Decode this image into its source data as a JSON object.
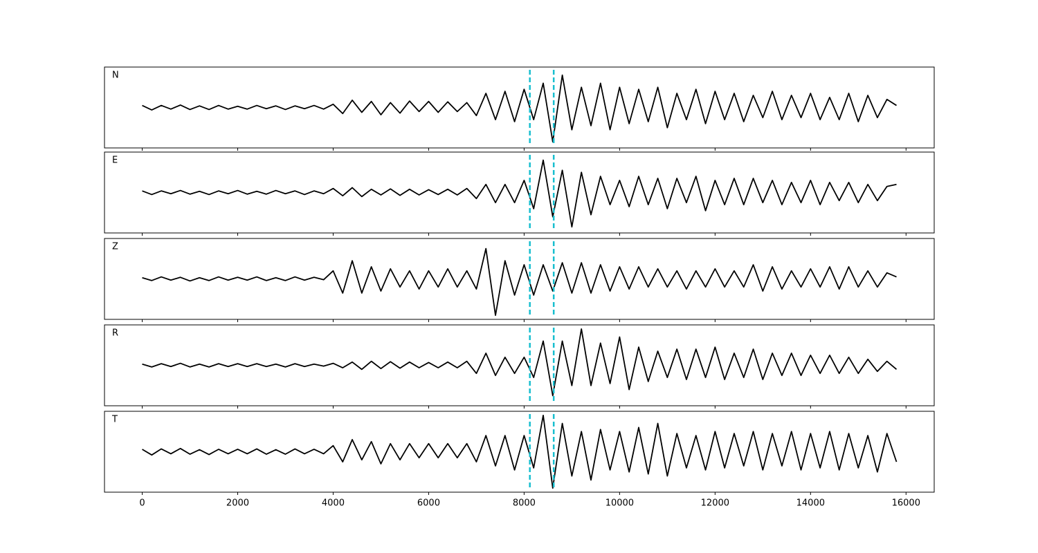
{
  "chart_data": {
    "type": "line",
    "x": [
      0,
      200,
      400,
      600,
      800,
      1000,
      1200,
      1400,
      1600,
      1800,
      2000,
      2200,
      2400,
      2600,
      2800,
      3000,
      3200,
      3400,
      3600,
      3800,
      4000,
      4200,
      4400,
      4600,
      4800,
      5000,
      5200,
      5400,
      5600,
      5800,
      6000,
      6200,
      6400,
      6600,
      6800,
      7000,
      7200,
      7400,
      7600,
      7800,
      8000,
      8200,
      8400,
      8600,
      8800,
      9000,
      9200,
      9400,
      9600,
      9800,
      10000,
      10200,
      10400,
      10600,
      10800,
      11000,
      11200,
      11400,
      11600,
      11800,
      12000,
      12200,
      12400,
      12600,
      12800,
      13000,
      13200,
      13400,
      13600,
      13800,
      14000,
      14200,
      14400,
      14600,
      14800,
      15000,
      15200,
      15400,
      15600,
      15800
    ],
    "xlim": [
      -790,
      16590
    ],
    "xticks": [
      0,
      2000,
      4000,
      6000,
      8000,
      10000,
      12000,
      14000,
      16000
    ],
    "ylim": [
      -1,
      1
    ],
    "markers": [
      8120,
      8620
    ],
    "marker_color": "#17becf",
    "series": [
      {
        "name": "N",
        "color": "#000000",
        "values": [
          0.05,
          -0.06,
          0.05,
          -0.04,
          0.06,
          -0.05,
          0.04,
          -0.05,
          0.05,
          -0.04,
          0.03,
          -0.04,
          0.05,
          -0.03,
          0.04,
          -0.05,
          0.04,
          -0.03,
          0.05,
          -0.04,
          0.08,
          -0.15,
          0.18,
          -0.12,
          0.15,
          -0.18,
          0.12,
          -0.14,
          0.16,
          -0.1,
          0.15,
          -0.12,
          0.14,
          -0.1,
          0.12,
          -0.2,
          0.35,
          -0.3,
          0.4,
          -0.35,
          0.45,
          -0.3,
          0.6,
          -0.85,
          0.8,
          -0.55,
          0.5,
          -0.45,
          0.6,
          -0.55,
          0.5,
          -0.4,
          0.45,
          -0.35,
          0.5,
          -0.5,
          0.35,
          -0.3,
          0.45,
          -0.4,
          0.4,
          -0.3,
          0.35,
          -0.35,
          0.3,
          -0.25,
          0.4,
          -0.3,
          0.3,
          -0.25,
          0.35,
          -0.3,
          0.25,
          -0.3,
          0.35,
          -0.35,
          0.3,
          -0.25,
          0.2,
          0.05
        ]
      },
      {
        "name": "E",
        "color": "#000000",
        "values": [
          0.04,
          -0.05,
          0.04,
          -0.03,
          0.05,
          -0.04,
          0.03,
          -0.05,
          0.04,
          -0.03,
          0.05,
          -0.04,
          0.03,
          -0.04,
          0.05,
          -0.03,
          0.04,
          -0.05,
          0.04,
          -0.03,
          0.1,
          -0.08,
          0.12,
          -0.1,
          0.08,
          -0.06,
          0.09,
          -0.07,
          0.08,
          -0.06,
          0.07,
          -0.05,
          0.08,
          -0.06,
          0.1,
          -0.15,
          0.2,
          -0.25,
          0.2,
          -0.25,
          0.3,
          -0.4,
          0.8,
          -0.6,
          0.55,
          -0.85,
          0.5,
          -0.55,
          0.4,
          -0.3,
          0.3,
          -0.35,
          0.4,
          -0.3,
          0.35,
          -0.4,
          0.35,
          -0.25,
          0.4,
          -0.45,
          0.3,
          -0.3,
          0.35,
          -0.3,
          0.35,
          -0.25,
          0.3,
          -0.3,
          0.25,
          -0.25,
          0.3,
          -0.3,
          0.25,
          -0.2,
          0.25,
          -0.25,
          0.2,
          -0.2,
          0.15,
          0.2
        ]
      },
      {
        "name": "Z",
        "color": "#000000",
        "values": [
          0.03,
          -0.04,
          0.05,
          -0.03,
          0.04,
          -0.05,
          0.03,
          -0.04,
          0.05,
          -0.03,
          0.04,
          -0.03,
          0.05,
          -0.04,
          0.03,
          -0.04,
          0.05,
          -0.03,
          0.04,
          -0.02,
          0.2,
          -0.35,
          0.45,
          -0.35,
          0.3,
          -0.3,
          0.25,
          -0.2,
          0.2,
          -0.25,
          0.2,
          -0.2,
          0.25,
          -0.2,
          0.2,
          -0.25,
          0.75,
          -0.9,
          0.45,
          -0.4,
          0.35,
          -0.4,
          0.35,
          -0.3,
          0.4,
          -0.35,
          0.4,
          -0.35,
          0.35,
          -0.3,
          0.3,
          -0.25,
          0.3,
          -0.2,
          0.25,
          -0.2,
          0.2,
          -0.25,
          0.2,
          -0.2,
          0.25,
          -0.2,
          0.2,
          -0.2,
          0.35,
          -0.3,
          0.3,
          -0.25,
          0.2,
          -0.2,
          0.25,
          -0.2,
          0.3,
          -0.25,
          0.3,
          -0.2,
          0.2,
          -0.2,
          0.15,
          0.05
        ]
      },
      {
        "name": "R",
        "color": "#000000",
        "values": [
          0.03,
          -0.04,
          0.04,
          -0.03,
          0.05,
          -0.04,
          0.03,
          -0.04,
          0.04,
          -0.03,
          0.04,
          -0.03,
          0.04,
          -0.03,
          0.03,
          -0.04,
          0.04,
          -0.03,
          0.03,
          -0.02,
          0.05,
          -0.06,
          0.08,
          -0.1,
          0.1,
          -0.08,
          0.09,
          -0.07,
          0.08,
          -0.06,
          0.07,
          -0.06,
          0.08,
          -0.06,
          0.1,
          -0.2,
          0.3,
          -0.25,
          0.2,
          -0.2,
          0.2,
          -0.3,
          0.6,
          -0.75,
          0.6,
          -0.5,
          0.9,
          -0.5,
          0.55,
          -0.45,
          0.7,
          -0.6,
          0.45,
          -0.4,
          0.35,
          -0.3,
          0.4,
          -0.35,
          0.4,
          -0.3,
          0.45,
          -0.35,
          0.3,
          -0.3,
          0.4,
          -0.35,
          0.3,
          -0.25,
          0.3,
          -0.25,
          0.25,
          -0.2,
          0.25,
          -0.2,
          0.2,
          -0.2,
          0.15,
          -0.15,
          0.1,
          -0.1
        ]
      },
      {
        "name": "T",
        "color": "#000000",
        "values": [
          0.06,
          -0.08,
          0.07,
          -0.05,
          0.08,
          -0.06,
          0.05,
          -0.07,
          0.06,
          -0.05,
          0.06,
          -0.05,
          0.07,
          -0.06,
          0.05,
          -0.06,
          0.07,
          -0.05,
          0.06,
          -0.05,
          0.15,
          -0.25,
          0.3,
          -0.2,
          0.25,
          -0.3,
          0.2,
          -0.2,
          0.2,
          -0.15,
          0.2,
          -0.15,
          0.2,
          -0.15,
          0.2,
          -0.25,
          0.4,
          -0.35,
          0.4,
          -0.45,
          0.4,
          -0.4,
          0.9,
          -0.9,
          0.7,
          -0.6,
          0.5,
          -0.7,
          0.55,
          -0.45,
          0.5,
          -0.5,
          0.6,
          -0.55,
          0.7,
          -0.6,
          0.45,
          -0.4,
          0.4,
          -0.45,
          0.5,
          -0.4,
          0.45,
          -0.35,
          0.5,
          -0.45,
          0.45,
          -0.35,
          0.5,
          -0.45,
          0.45,
          -0.4,
          0.5,
          -0.45,
          0.45,
          -0.4,
          0.4,
          -0.5,
          0.45,
          -0.25
        ]
      }
    ]
  }
}
